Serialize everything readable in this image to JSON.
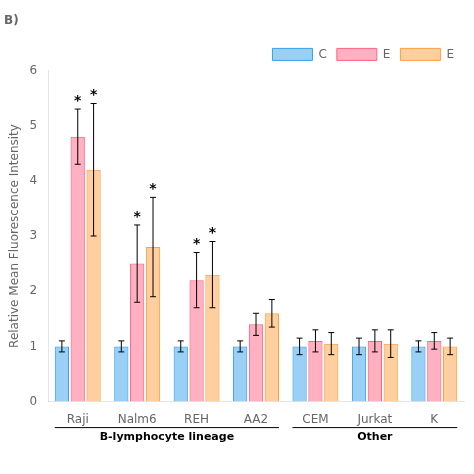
{
  "chart_data": {
    "type": "bar",
    "title": "B)",
    "ylabel": "Relative Mean Fluorescence Intensity",
    "categories": [
      "Raji",
      "Nalm6",
      "REH",
      "AA2",
      "CEM",
      "Jurkat",
      "K"
    ],
    "series": [
      {
        "name": "C",
        "values": [
          1.0,
          1.0,
          1.0,
          1.0,
          1.0,
          1.0,
          1.0
        ],
        "errors": [
          0.1,
          0.1,
          0.1,
          0.1,
          0.15,
          0.15,
          0.1
        ]
      },
      {
        "name": "E",
        "values": [
          4.8,
          2.5,
          2.2,
          1.4,
          1.1,
          1.1,
          1.1
        ],
        "errors": [
          0.5,
          0.7,
          0.5,
          0.2,
          0.2,
          0.2,
          0.15
        ],
        "annotations": [
          "*",
          "*",
          "*",
          null,
          null,
          null,
          null
        ]
      },
      {
        "name": "E",
        "values": [
          4.2,
          2.8,
          2.3,
          1.6,
          1.05,
          1.05,
          1.0
        ],
        "errors": [
          1.2,
          0.9,
          0.6,
          0.25,
          0.2,
          0.25,
          0.15
        ],
        "annotations": [
          "*",
          "*",
          "*",
          null,
          null,
          null,
          null
        ]
      }
    ],
    "groups": [
      {
        "label": "B-lymphocyte lineage",
        "categories": [
          "Raji",
          "Nalm6",
          "REH",
          "AA2"
        ]
      },
      {
        "label": "Other",
        "categories": [
          "CEM",
          "Jurkat",
          "K"
        ]
      }
    ],
    "ylim": [
      0,
      6
    ],
    "yticks": [
      0,
      1,
      2,
      3,
      4,
      5,
      6
    ],
    "grid": false,
    "legend": "upper right"
  }
}
